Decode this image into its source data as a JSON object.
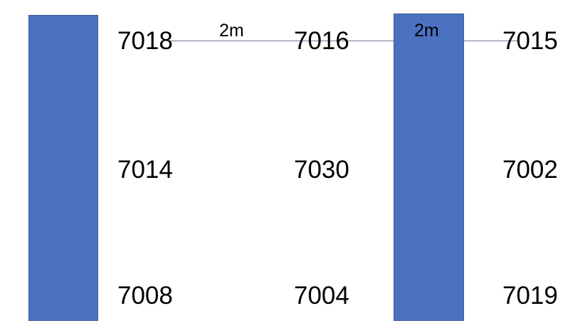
{
  "colors": {
    "bar_fill": "#4a72c0",
    "bar_border": "#3b5998",
    "line": "#6d7a93",
    "text": "#000000"
  },
  "distance_labels": {
    "left_span": "2m",
    "right_span": "2m"
  },
  "grid": {
    "row1": {
      "left": "7018",
      "middle": "7016",
      "right": "7015"
    },
    "row2": {
      "left": "7014",
      "middle": "7030",
      "right": "7002"
    },
    "row3": {
      "left": "7008",
      "middle": "7004",
      "right": "7019"
    }
  }
}
